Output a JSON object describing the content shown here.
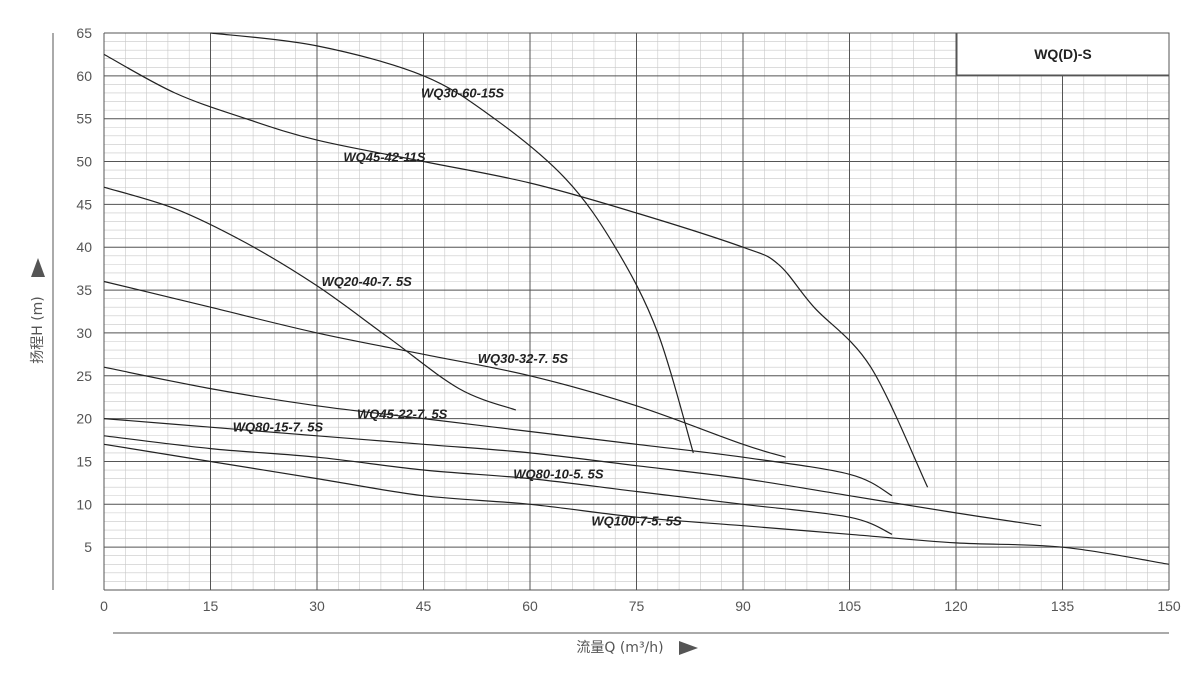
{
  "chart_data": {
    "type": "line",
    "title": "WQ(D)-S",
    "xlabel": "流量Q (m³/h)",
    "ylabel": "扬程H (m)",
    "xlim": [
      0,
      150
    ],
    "ylim": [
      0,
      65
    ],
    "x_ticks": [
      0,
      15,
      30,
      45,
      60,
      75,
      90,
      105,
      120,
      135,
      150
    ],
    "y_ticks": [
      5,
      10,
      15,
      20,
      25,
      30,
      35,
      40,
      45,
      50,
      55,
      60,
      65
    ],
    "grid": true,
    "series": [
      {
        "name": "WQ30-60-15S",
        "x": [
          15,
          30,
          45,
          55,
          65,
          72,
          78,
          83
        ],
        "y": [
          65,
          63.5,
          60,
          55,
          48,
          40,
          30,
          16
        ]
      },
      {
        "name": "WQ45-42-11S",
        "x": [
          0,
          10,
          20,
          30,
          45,
          60,
          75,
          90,
          95,
          100,
          108,
          116
        ],
        "y": [
          62.5,
          58,
          55,
          52.5,
          50,
          47.5,
          44,
          40,
          38,
          33,
          26,
          12
        ]
      },
      {
        "name": "WQ20-40-7. 5S",
        "x": [
          0,
          10,
          20,
          30,
          40,
          50,
          58
        ],
        "y": [
          47,
          44.5,
          40.5,
          35.5,
          29.5,
          23.5,
          21
        ]
      },
      {
        "name": "WQ30-32-7. 5S",
        "x": [
          0,
          15,
          30,
          45,
          60,
          75,
          90,
          96
        ],
        "y": [
          36,
          33,
          30,
          27.5,
          25,
          21.5,
          17,
          15.5
        ]
      },
      {
        "name": "WQ45-22-7. 5S",
        "x": [
          0,
          15,
          30,
          45,
          60,
          75,
          90,
          105,
          111
        ],
        "y": [
          26,
          23.5,
          21.5,
          20,
          18.5,
          17,
          15.5,
          13.5,
          11
        ]
      },
      {
        "name": "WQ80-15-7. 5S",
        "x": [
          0,
          15,
          30,
          45,
          60,
          75,
          90,
          105,
          120,
          132
        ],
        "y": [
          20,
          19,
          18,
          17,
          16,
          14.5,
          13,
          11,
          9,
          7.5
        ]
      },
      {
        "name": "WQ80-10-5. 5S",
        "x": [
          0,
          15,
          30,
          45,
          60,
          75,
          90,
          105,
          111
        ],
        "y": [
          18,
          16.5,
          15.5,
          14,
          13,
          11.5,
          10,
          8.5,
          6.5
        ]
      },
      {
        "name": "WQ100-7-5. 5S",
        "x": [
          0,
          15,
          30,
          45,
          60,
          75,
          90,
          105,
          120,
          135,
          150
        ],
        "y": [
          17,
          15,
          13,
          11,
          10,
          8.5,
          7.5,
          6.5,
          5.5,
          5,
          3
        ]
      }
    ]
  }
}
